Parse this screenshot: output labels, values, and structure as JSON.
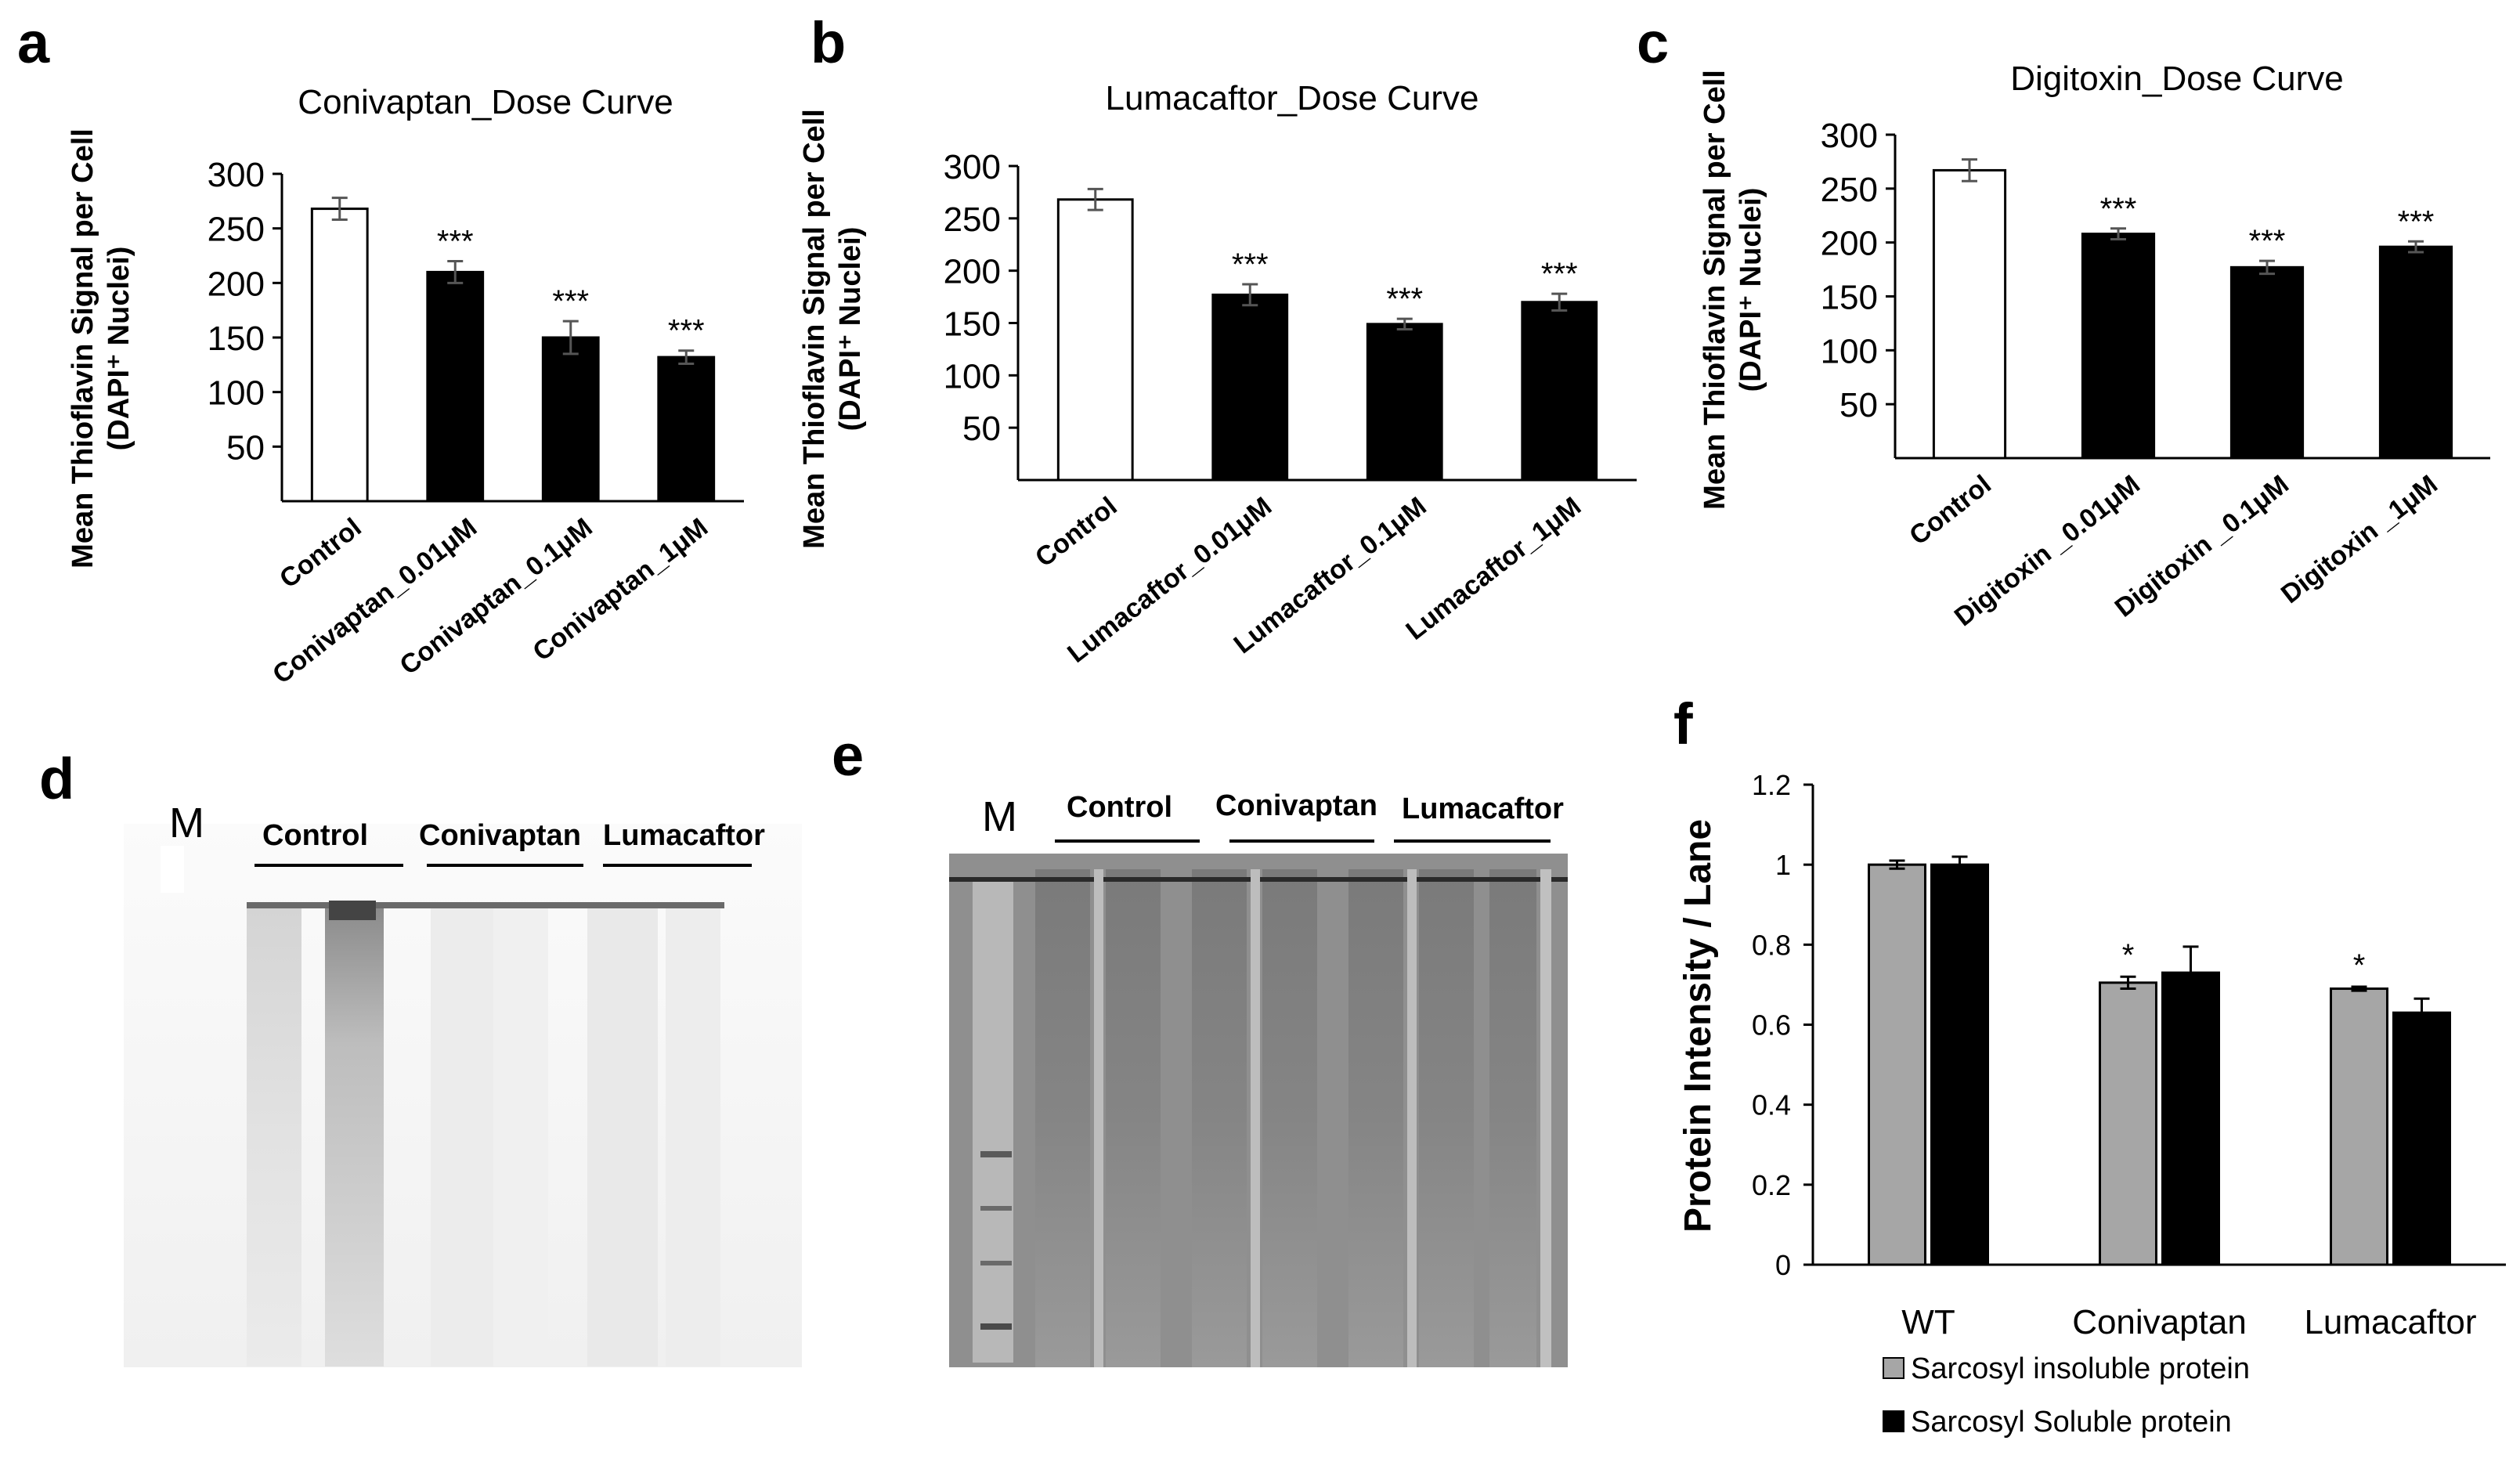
{
  "panel_letters": {
    "a": "a",
    "b": "b",
    "c": "c",
    "d": "d",
    "e": "e",
    "f": "f"
  },
  "colors": {
    "black_bar": "#000000",
    "white_bar": "#ffffff",
    "gray_bar": "#a6a6a6",
    "gel_e_bg": "#8c8c8c"
  },
  "chart_data": [
    {
      "id": "a",
      "type": "bar",
      "title": "Conivaptan_Dose Curve",
      "ylabel_line1": "Mean Thioflavin Signal per Cell",
      "ylabel_line2": "(DAPI⁺ Nuclei)",
      "xlabel": "",
      "categories": [
        "Control",
        "Conivaptan_0.01μM",
        "Conivaptan_0.1μM",
        "Conivaptan_1μM"
      ],
      "values": [
        268,
        210,
        150,
        132
      ],
      "errors": [
        10,
        10,
        15,
        6
      ],
      "annotations": [
        "",
        "***",
        "***",
        "***"
      ],
      "bar_colors": [
        "white",
        "black",
        "black",
        "black"
      ],
      "ylim": [
        0,
        300
      ],
      "yticks": [
        50,
        100,
        150,
        200,
        250,
        300
      ]
    },
    {
      "id": "b",
      "type": "bar",
      "title": "Lumacaftor_Dose Curve",
      "ylabel_line1": "Mean Thioflavin Signal per Cell",
      "ylabel_line2": "(DAPI⁺ Nuclei)",
      "xlabel": "",
      "categories": [
        "Control",
        "Lumacaftor_0.01μM",
        "Lumacaftor_0.1μM",
        "Lumacaftor_1μM"
      ],
      "values": [
        268,
        177,
        149,
        170
      ],
      "errors": [
        10,
        10,
        5,
        8
      ],
      "annotations": [
        "",
        "***",
        "***",
        "***"
      ],
      "bar_colors": [
        "white",
        "black",
        "black",
        "black"
      ],
      "ylim": [
        0,
        300
      ],
      "yticks": [
        50,
        100,
        150,
        200,
        250,
        300
      ]
    },
    {
      "id": "c",
      "type": "bar",
      "title": "Digitoxin_Dose Curve",
      "ylabel_line1": "Mean Thioflavin Signal per Cell",
      "ylabel_line2": "(DAPI⁺ Nuclei)",
      "xlabel": "",
      "categories": [
        "Control",
        "Digitoxin _0.01μM",
        "Digitoxin _0.1μM",
        "Digitoxin _1μM"
      ],
      "values": [
        267,
        208,
        177,
        196
      ],
      "errors": [
        10,
        5,
        6,
        5
      ],
      "annotations": [
        "",
        "***",
        "***",
        "***"
      ],
      "bar_colors": [
        "white",
        "black",
        "black",
        "black"
      ],
      "ylim": [
        0,
        300
      ],
      "yticks": [
        50,
        100,
        150,
        200,
        250,
        300
      ]
    },
    {
      "id": "f",
      "type": "bar",
      "title": "",
      "ylabel": "Protein Intensity / Lane",
      "xlabel": "",
      "categories": [
        "WT",
        "Conivaptan",
        "Lumacaftor"
      ],
      "series": [
        {
          "name": "Sarcosyl insoluble protein",
          "color": "gray",
          "values": [
            1.0,
            0.705,
            0.69
          ],
          "errors": [
            0.01,
            0.015,
            0.005
          ],
          "annotations": [
            "",
            "*",
            "*"
          ]
        },
        {
          "name": "Sarcosyl Soluble protein",
          "color": "black",
          "values": [
            1.0,
            0.73,
            0.63
          ],
          "errors": [
            0.02,
            0.065,
            0.035
          ],
          "annotations": [
            "",
            "",
            ""
          ]
        }
      ],
      "ylim": [
        0,
        1.2
      ],
      "yticks": [
        "0",
        "0.2",
        "0.4",
        "0.6",
        "0.8",
        "1",
        "1.2"
      ],
      "legend_position": "bottom"
    }
  ],
  "gel_d": {
    "marker": "M",
    "groups": [
      "Control",
      "Conivaptan",
      "Lumacaftor"
    ]
  },
  "gel_e": {
    "marker": "M",
    "groups": [
      "Control",
      "Conivaptan",
      "Lumacaftor"
    ]
  }
}
